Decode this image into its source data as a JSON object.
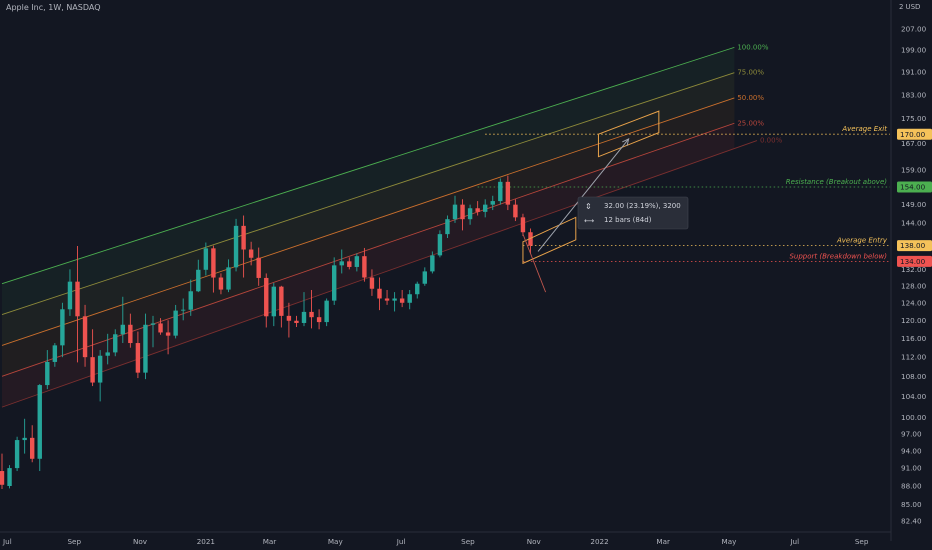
{
  "chart_data": {
    "type": "candlestick",
    "title": "Apple Inc, 1W, NASDAQ",
    "currency": "USD",
    "currency_prefix": "2",
    "y_axis": {
      "scale": "log",
      "ticks": [
        82.4,
        85.0,
        88.0,
        91.0,
        94.0,
        97.0,
        100.0,
        104.0,
        108.0,
        112.0,
        116.0,
        120.0,
        124.0,
        128.0,
        132.0,
        144.0,
        149.0,
        159.0,
        167.0,
        175.0,
        183.0,
        191.0,
        199.0,
        207.0
      ],
      "tick_labels": [
        "82.40",
        "85.00",
        "88.00",
        "91.00",
        "94.00",
        "97.00",
        "100.00",
        "104.00",
        "108.00",
        "112.00",
        "116.00",
        "120.00",
        "124.00",
        "128.00",
        "132.00",
        "144.00",
        "149.00",
        "159.00",
        "167.00",
        "175.00",
        "183.00",
        "191.00",
        "199.00",
        "207.00"
      ]
    },
    "x_axis": {
      "labels": [
        "Jul",
        "Sep",
        "Nov",
        "2021",
        "Mar",
        "May",
        "Jul",
        "Sep",
        "Nov",
        "2022",
        "Mar",
        "May",
        "Jul",
        "Sep"
      ],
      "label_dates": [
        "2020-07-01",
        "2020-09-01",
        "2020-11-01",
        "2021-01-01",
        "2021-03-01",
        "2021-05-01",
        "2021-07-01",
        "2021-09-01",
        "2021-11-01",
        "2022-01-01",
        "2022-03-01",
        "2022-05-01",
        "2022-07-01",
        "2022-09-01"
      ]
    },
    "candles": [
      {
        "date": "2020-06-26",
        "o": 90.5,
        "h": 93.5,
        "l": 87.5,
        "c": 88.2
      },
      {
        "date": "2020-07-03",
        "o": 88.0,
        "h": 91.5,
        "l": 87.6,
        "c": 91.0
      },
      {
        "date": "2020-07-10",
        "o": 91.0,
        "h": 96.5,
        "l": 90.5,
        "c": 95.9
      },
      {
        "date": "2020-07-17",
        "o": 95.9,
        "h": 99.8,
        "l": 93.5,
        "c": 96.3
      },
      {
        "date": "2020-07-24",
        "o": 96.3,
        "h": 98.6,
        "l": 92.0,
        "c": 92.6
      },
      {
        "date": "2020-07-31",
        "o": 92.6,
        "h": 106.5,
        "l": 90.5,
        "c": 106.3
      },
      {
        "date": "2020-08-07",
        "o": 106.3,
        "h": 113.5,
        "l": 105.5,
        "c": 111.0
      },
      {
        "date": "2020-08-14",
        "o": 111.0,
        "h": 115.0,
        "l": 110.0,
        "c": 114.5
      },
      {
        "date": "2020-08-21",
        "o": 114.5,
        "h": 124.0,
        "l": 112.0,
        "c": 122.5
      },
      {
        "date": "2020-08-28",
        "o": 122.5,
        "h": 132.0,
        "l": 121.0,
        "c": 129.0
      },
      {
        "date": "2020-09-04",
        "o": 129.0,
        "h": 137.9,
        "l": 110.9,
        "c": 120.9
      },
      {
        "date": "2020-09-11",
        "o": 120.9,
        "h": 123.5,
        "l": 110.0,
        "c": 112.0
      },
      {
        "date": "2020-09-18",
        "o": 112.0,
        "h": 118.0,
        "l": 106.1,
        "c": 106.8
      },
      {
        "date": "2020-09-25",
        "o": 106.8,
        "h": 113.5,
        "l": 103.1,
        "c": 112.3
      },
      {
        "date": "2020-10-02",
        "o": 112.3,
        "h": 117.0,
        "l": 110.5,
        "c": 113.0
      },
      {
        "date": "2020-10-09",
        "o": 113.0,
        "h": 118.0,
        "l": 112.2,
        "c": 116.9
      },
      {
        "date": "2020-10-16",
        "o": 116.9,
        "h": 125.4,
        "l": 115.0,
        "c": 119.0
      },
      {
        "date": "2020-10-23",
        "o": 119.0,
        "h": 121.5,
        "l": 114.0,
        "c": 115.0
      },
      {
        "date": "2020-10-30",
        "o": 115.0,
        "h": 117.5,
        "l": 107.7,
        "c": 108.8
      },
      {
        "date": "2020-11-06",
        "o": 108.8,
        "h": 121.5,
        "l": 107.5,
        "c": 119.0
      },
      {
        "date": "2020-11-13",
        "o": 119.0,
        "h": 121.0,
        "l": 114.1,
        "c": 119.3
      },
      {
        "date": "2020-11-20",
        "o": 119.3,
        "h": 120.5,
        "l": 116.8,
        "c": 117.3
      },
      {
        "date": "2020-11-27",
        "o": 117.3,
        "h": 120.0,
        "l": 112.6,
        "c": 116.6
      },
      {
        "date": "2020-12-04",
        "o": 116.6,
        "h": 123.5,
        "l": 116.0,
        "c": 122.2
      },
      {
        "date": "2020-12-11",
        "o": 122.2,
        "h": 125.0,
        "l": 120.0,
        "c": 122.4
      },
      {
        "date": "2020-12-18",
        "o": 122.4,
        "h": 129.5,
        "l": 121.0,
        "c": 126.7
      },
      {
        "date": "2020-12-25",
        "o": 126.7,
        "h": 134.4,
        "l": 126.5,
        "c": 131.9
      },
      {
        "date": "2021-01-01",
        "o": 131.9,
        "h": 138.8,
        "l": 130.5,
        "c": 137.3
      },
      {
        "date": "2021-01-08",
        "o": 137.3,
        "h": 138.0,
        "l": 126.4,
        "c": 130.0
      },
      {
        "date": "2021-01-15",
        "o": 130.0,
        "h": 131.0,
        "l": 126.0,
        "c": 127.1
      },
      {
        "date": "2021-01-22",
        "o": 127.1,
        "h": 134.5,
        "l": 126.5,
        "c": 132.5
      },
      {
        "date": "2021-01-29",
        "o": 132.5,
        "h": 145.1,
        "l": 131.5,
        "c": 143.2
      },
      {
        "date": "2021-02-05",
        "o": 143.2,
        "h": 146.0,
        "l": 130.0,
        "c": 137.0
      },
      {
        "date": "2021-02-12",
        "o": 137.0,
        "h": 139.0,
        "l": 133.0,
        "c": 134.9
      },
      {
        "date": "2021-02-19",
        "o": 134.9,
        "h": 137.5,
        "l": 128.0,
        "c": 129.9
      },
      {
        "date": "2021-02-26",
        "o": 129.9,
        "h": 131.0,
        "l": 118.4,
        "c": 120.9
      },
      {
        "date": "2021-03-05",
        "o": 120.9,
        "h": 128.7,
        "l": 118.7,
        "c": 127.8
      },
      {
        "date": "2021-03-12",
        "o": 127.8,
        "h": 128.0,
        "l": 118.4,
        "c": 121.0
      },
      {
        "date": "2021-03-19",
        "o": 121.0,
        "h": 124.0,
        "l": 116.2,
        "c": 119.9
      },
      {
        "date": "2021-03-26",
        "o": 119.9,
        "h": 121.0,
        "l": 118.5,
        "c": 119.4
      },
      {
        "date": "2021-04-02",
        "o": 119.4,
        "h": 126.5,
        "l": 118.7,
        "c": 121.9
      },
      {
        "date": "2021-04-09",
        "o": 121.9,
        "h": 127.0,
        "l": 118.2,
        "c": 120.7
      },
      {
        "date": "2021-04-16",
        "o": 120.7,
        "h": 122.5,
        "l": 118.0,
        "c": 119.6
      },
      {
        "date": "2021-04-23",
        "o": 119.6,
        "h": 125.0,
        "l": 118.7,
        "c": 124.5
      },
      {
        "date": "2021-04-30",
        "o": 124.5,
        "h": 135.0,
        "l": 123.5,
        "c": 133.0
      },
      {
        "date": "2021-05-07",
        "o": 133.0,
        "h": 137.0,
        "l": 131.0,
        "c": 134.0
      },
      {
        "date": "2021-05-14",
        "o": 134.0,
        "h": 135.0,
        "l": 132.0,
        "c": 132.6
      },
      {
        "date": "2021-05-21",
        "o": 132.6,
        "h": 136.0,
        "l": 131.5,
        "c": 135.3
      },
      {
        "date": "2021-05-28",
        "o": 135.3,
        "h": 137.4,
        "l": 129.0,
        "c": 130.0
      },
      {
        "date": "2021-06-04",
        "o": 130.0,
        "h": 132.0,
        "l": 125.6,
        "c": 127.3
      },
      {
        "date": "2021-06-11",
        "o": 127.3,
        "h": 130.0,
        "l": 122.3,
        "c": 125.0
      },
      {
        "date": "2021-06-18",
        "o": 125.0,
        "h": 127.0,
        "l": 123.5,
        "c": 124.5
      },
      {
        "date": "2021-06-25",
        "o": 124.5,
        "h": 126.5,
        "l": 122.0,
        "c": 125.0
      },
      {
        "date": "2021-07-02",
        "o": 125.0,
        "h": 127.0,
        "l": 123.0,
        "c": 124.0
      },
      {
        "date": "2021-07-09",
        "o": 124.0,
        "h": 127.0,
        "l": 122.5,
        "c": 126.0
      },
      {
        "date": "2021-07-16",
        "o": 126.0,
        "h": 129.0,
        "l": 125.0,
        "c": 128.5
      },
      {
        "date": "2021-07-23",
        "o": 128.5,
        "h": 132.5,
        "l": 128.0,
        "c": 131.5
      },
      {
        "date": "2021-07-30",
        "o": 131.5,
        "h": 136.5,
        "l": 131.0,
        "c": 135.5
      },
      {
        "date": "2021-08-06",
        "o": 135.5,
        "h": 142.0,
        "l": 135.0,
        "c": 141.0
      },
      {
        "date": "2021-08-13",
        "o": 141.0,
        "h": 146.0,
        "l": 140.0,
        "c": 145.0
      },
      {
        "date": "2021-08-20",
        "o": 145.0,
        "h": 151.5,
        "l": 144.0,
        "c": 149.0
      },
      {
        "date": "2021-08-27",
        "o": 149.0,
        "h": 150.5,
        "l": 142.0,
        "c": 145.0
      },
      {
        "date": "2021-09-03",
        "o": 145.0,
        "h": 149.0,
        "l": 143.5,
        "c": 148.0
      },
      {
        "date": "2021-09-10",
        "o": 148.0,
        "h": 150.0,
        "l": 146.0,
        "c": 147.0
      },
      {
        "date": "2021-09-17",
        "o": 147.0,
        "h": 150.5,
        "l": 145.5,
        "c": 149.0
      },
      {
        "date": "2021-09-24",
        "o": 149.0,
        "h": 151.5,
        "l": 147.5,
        "c": 150.0
      },
      {
        "date": "2021-10-01",
        "o": 150.0,
        "h": 156.5,
        "l": 149.0,
        "c": 155.5
      },
      {
        "date": "2021-10-08",
        "o": 155.5,
        "h": 157.3,
        "l": 147.5,
        "c": 149.0
      },
      {
        "date": "2021-10-15",
        "o": 149.0,
        "h": 150.5,
        "l": 144.5,
        "c": 145.5
      },
      {
        "date": "2021-10-22",
        "o": 145.5,
        "h": 146.5,
        "l": 140.5,
        "c": 141.5
      },
      {
        "date": "2021-10-29",
        "o": 141.5,
        "h": 142.5,
        "l": 136.0,
        "c": 138.0
      }
    ],
    "channel": {
      "levels": [
        "100.00%",
        "75.00%",
        "50.00%",
        "25.00%",
        "0.00%"
      ],
      "start": {
        "date": "2020-06-26",
        "base": 102.0,
        "top": 128.5
      },
      "end": {
        "date": "2022-05-06",
        "base": 165.5,
        "top": 200.0
      },
      "extension_end": {
        "date": "2022-05-27",
        "base": 168.0
      }
    },
    "levels": [
      {
        "label": "Average Exit",
        "price": 170.0,
        "price_label": "170.00",
        "color": "#f5c25a",
        "from_date": "2021-09-17"
      },
      {
        "label": "Resistance (Breakout above)",
        "price": 154.0,
        "price_label": "154.00",
        "color": "#4caf50",
        "from_date": "2021-09-10"
      },
      {
        "label": "Average Entry",
        "price": 138.0,
        "price_label": "138.00",
        "color": "#f5c25a",
        "from_date": "2021-10-22"
      },
      {
        "label": "Support (Breakdown below)",
        "price": 134.0,
        "price_label": "134.00",
        "color": "#ef5350",
        "from_date": "2021-10-22"
      }
    ],
    "projection": {
      "from": {
        "date": "2021-11-05",
        "price": 136.5
      },
      "to": {
        "date": "2022-01-28",
        "price": 168.5
      },
      "entry_box": {
        "date_left": "2021-10-22",
        "date_right": "2021-12-10",
        "low_left": 133.5,
        "high_left": 139.0,
        "low_right": 139.5,
        "high_right": 145.5
      },
      "exit_box": {
        "date_left": "2021-12-31",
        "date_right": "2022-02-25",
        "low_left": 163.0,
        "high_left": 170.0,
        "low_right": 170.5,
        "high_right": 177.5
      },
      "tick_line": {
        "from": {
          "date": "2021-10-22",
          "price": 141.0
        },
        "to": {
          "date": "2021-11-12",
          "price": 126.5
        }
      },
      "info_price": "32.00 (23.19%), 3200",
      "info_bars": "12 bars (84d)"
    },
    "colors": {
      "up": "#26a69a",
      "down": "#ef5350",
      "background": "#131722",
      "axis_text": "#b2b5be"
    },
    "grid": false
  }
}
